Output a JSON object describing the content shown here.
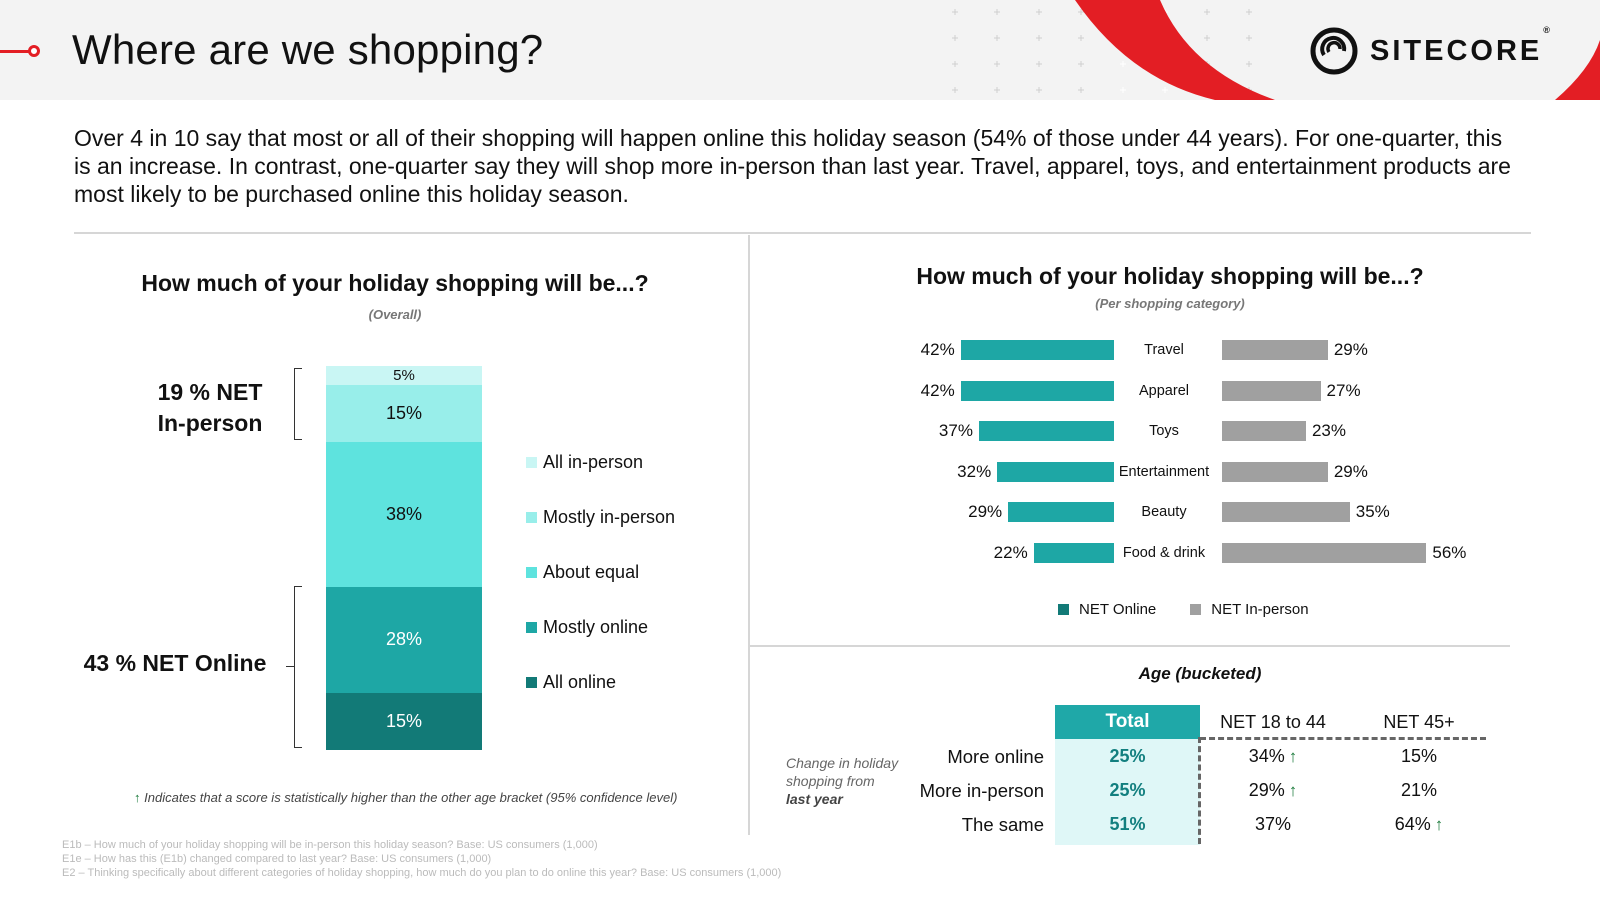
{
  "header": {
    "title": "Where are we shopping?",
    "logo_text": "SITECORE",
    "logo_mark": "®",
    "accent_color": "#e31e24"
  },
  "intro": "Over 4 in 10 say that most or all of their shopping will happen online this holiday season (54% of those under 44 years). For one-quarter, this is an increase. In contrast, one-quarter say they will shop more in-person than last year. Travel, apparel, toys, and entertainment products are most likely to be purchased online this holiday season.",
  "chart_data": [
    {
      "type": "bar",
      "stacked": true,
      "title": "How much of your holiday shopping will be...?",
      "subtitle": "(Overall)",
      "categories": [
        "All online",
        "Mostly online",
        "About equal",
        "Mostly in-person",
        "All in-person"
      ],
      "values": [
        15,
        28,
        38,
        15,
        5
      ],
      "value_labels": [
        "15%",
        "28%",
        "38%",
        "15%",
        "5%"
      ],
      "colors": [
        "#127a77",
        "#1ea7a5",
        "#5ee3de",
        "#98eeea",
        "#c9f6f4"
      ],
      "legend": [
        "All in-person",
        "Mostly in-person",
        "About equal",
        "Mostly online",
        "All online"
      ],
      "net_in_person_label": "19 % NET In-person",
      "net_online_label": "43 % NET Online",
      "footnote": "Indicates that a score is statistically higher than the other age bracket (95% confidence level)",
      "footnote_arrow": "↑"
    },
    {
      "type": "bar",
      "orientation": "horizontal-butterfly",
      "title": "How much of your holiday shopping will be...?",
      "subtitle": "(Per shopping category)",
      "categories": [
        "Travel",
        "Apparel",
        "Toys",
        "Entertainment",
        "Beauty",
        "Food & drink"
      ],
      "series": [
        {
          "name": "NET Online",
          "values": [
            42,
            42,
            37,
            32,
            29,
            22
          ],
          "color": "#1ea7a5"
        },
        {
          "name": "NET In-person",
          "values": [
            29,
            27,
            23,
            29,
            35,
            56
          ],
          "color": "#a0a0a0"
        }
      ],
      "legend_placement": "bottom"
    },
    {
      "type": "table",
      "title": "Age (bucketed)",
      "row_group_label": [
        "Change in holiday",
        "shopping from",
        "last year"
      ],
      "columns": [
        "Total",
        "NET 18 to 44",
        "NET 45+"
      ],
      "rows": [
        {
          "label": "More online",
          "cells": [
            "25%",
            "34%",
            "15%"
          ],
          "higher": [
            false,
            true,
            false
          ]
        },
        {
          "label": "More in-person",
          "cells": [
            "25%",
            "29%",
            "21%"
          ],
          "higher": [
            false,
            true,
            false
          ]
        },
        {
          "label": "The same",
          "cells": [
            "51%",
            "37%",
            "64%"
          ],
          "higher": [
            false,
            false,
            true
          ]
        }
      ]
    }
  ],
  "sources": [
    "E1b – How much of your holiday shopping will be in-person this holiday season? Base: US consumers (1,000)",
    "E1e – How has this (E1b) changed compared to last year? Base: US consumers (1,000)",
    "E2 – Thinking specifically about different categories of holiday shopping, how much do you plan to do online this year? Base: US consumers (1,000)"
  ]
}
